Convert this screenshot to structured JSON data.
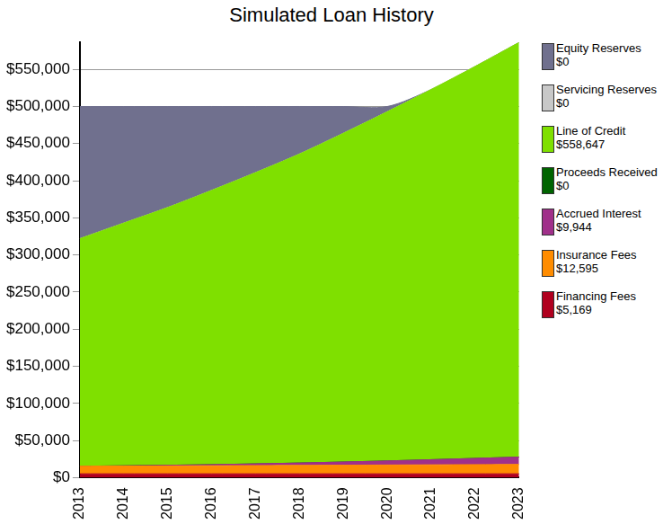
{
  "chart_data": {
    "type": "area",
    "title": "Simulated Loan History",
    "categories": [
      "2013",
      "2014",
      "2015",
      "2016",
      "2017",
      "2018",
      "2019",
      "2020",
      "2021",
      "2022",
      "2023"
    ],
    "stacked": true,
    "grid": true,
    "legend": "right",
    "ylim": [
      0,
      586355
    ],
    "yticks": [
      {
        "value": 0,
        "label": "$0"
      },
      {
        "value": 50000,
        "label": "$50,000"
      },
      {
        "value": 100000,
        "label": "$100,000"
      },
      {
        "value": 150000,
        "label": "$150,000"
      },
      {
        "value": 200000,
        "label": "$200,000"
      },
      {
        "value": 250000,
        "label": "$250,000"
      },
      {
        "value": 300000,
        "label": "$300,000"
      },
      {
        "value": 350000,
        "label": "$350,000"
      },
      {
        "value": 400000,
        "label": "$400,000"
      },
      {
        "value": 450000,
        "label": "$450,000"
      },
      {
        "value": 500000,
        "label": "$500,000"
      },
      {
        "value": 550000,
        "label": "$550,000"
      }
    ],
    "series": [
      {
        "name": "Financing Fees",
        "legend_label": "$5,169",
        "color": "#b0001e",
        "values": [
          5169,
          5169,
          5169,
          5169,
          5169,
          5169,
          5169,
          5169,
          5169,
          5169,
          5169
        ]
      },
      {
        "name": "Insurance Fees",
        "legend_label": "$12,595",
        "color": "#ff8c00",
        "values": [
          10200,
          10400,
          10600,
          10850,
          11100,
          11350,
          11600,
          11850,
          12100,
          12350,
          12595
        ]
      },
      {
        "name": "Accrued Interest",
        "legend_label": "$9,944",
        "color": "#a0308a",
        "values": [
          0,
          400,
          900,
          1500,
          2300,
          3200,
          4300,
          5500,
          6900,
          8400,
          9944
        ]
      },
      {
        "name": "Proceeds Received",
        "legend_label": "$0",
        "color": "#006400",
        "values": [
          0,
          0,
          0,
          0,
          0,
          0,
          0,
          0,
          0,
          0,
          0
        ]
      },
      {
        "name": "Line of Credit",
        "legend_label": "$558,647",
        "color": "#7fe000",
        "values": [
          306600,
          327000,
          347300,
          369500,
          392400,
          416300,
          442900,
          470500,
          498800,
          528100,
          558647
        ]
      },
      {
        "name": "Servicing Reserves",
        "legend_label": "$0",
        "color": "#c8c8c8",
        "values": [
          0,
          0,
          0,
          0,
          0,
          0,
          0,
          0,
          0,
          0,
          0
        ]
      },
      {
        "name": "Equity Reserves",
        "legend_label": "$0",
        "color": "#70708e",
        "values": [
          178000,
          157000,
          136000,
          113000,
          89000,
          64000,
          36000,
          7000,
          0,
          0,
          0
        ]
      }
    ]
  }
}
